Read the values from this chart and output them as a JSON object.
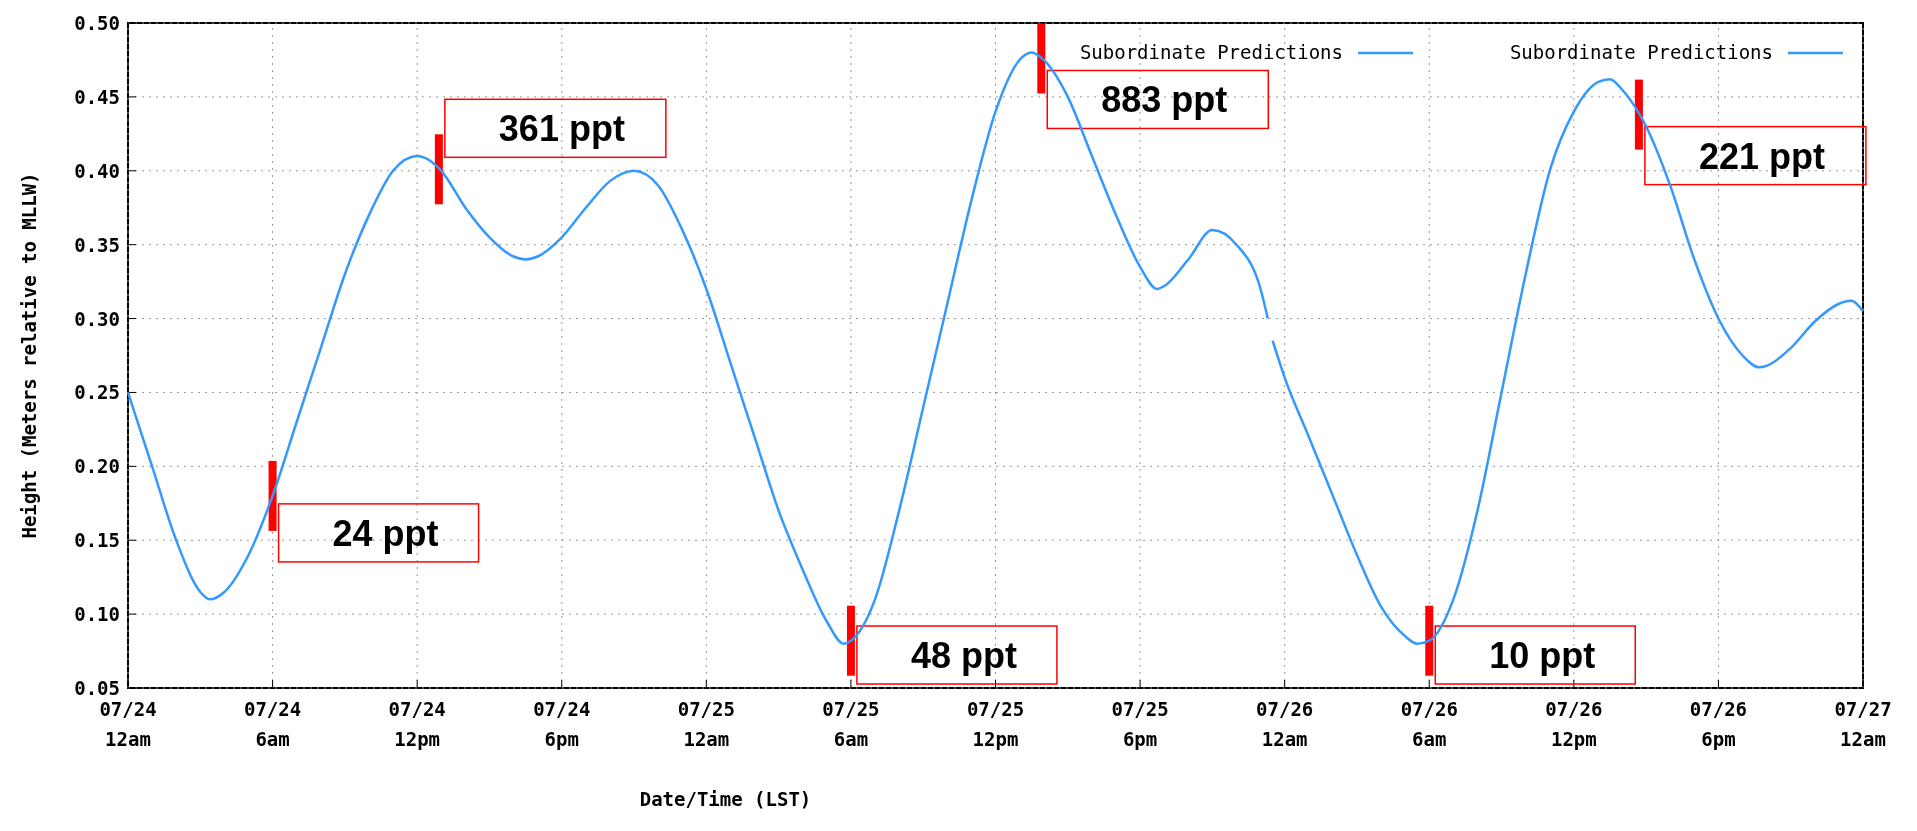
{
  "chart_data": {
    "type": "line",
    "xlabel": "Date/Time (LST)",
    "ylabel": "Height (Meters relative to MLLW)",
    "xlim": [
      "--07-24T00:00",
      "--07-27T00:00"
    ],
    "ylim": [
      0.05,
      0.5
    ],
    "yticks": [
      {
        "value": 0.05,
        "label": "0.05"
      },
      {
        "value": 0.1,
        "label": "0.10"
      },
      {
        "value": 0.15,
        "label": "0.15"
      },
      {
        "value": 0.2,
        "label": "0.20"
      },
      {
        "value": 0.25,
        "label": "0.25"
      },
      {
        "value": 0.3,
        "label": "0.30"
      },
      {
        "value": 0.35,
        "label": "0.35"
      },
      {
        "value": 0.4,
        "label": "0.40"
      },
      {
        "value": 0.45,
        "label": "0.45"
      },
      {
        "value": 0.5,
        "label": "0.50"
      }
    ],
    "xticks": [
      {
        "value": "--07-24T00:00",
        "label": "07/24\n12am"
      },
      {
        "value": "--07-24T06:00",
        "label": "07/24\n6am"
      },
      {
        "value": "--07-24T12:00",
        "label": "07/24\n12pm"
      },
      {
        "value": "--07-24T18:00",
        "label": "07/24\n6pm"
      },
      {
        "value": "--07-25T00:00",
        "label": "07/25\n12am"
      },
      {
        "value": "--07-25T06:00",
        "label": "07/25\n6am"
      },
      {
        "value": "--07-25T12:00",
        "label": "07/25\n12pm"
      },
      {
        "value": "--07-25T18:00",
        "label": "07/25\n6pm"
      },
      {
        "value": "--07-26T00:00",
        "label": "07/26\n12am"
      },
      {
        "value": "--07-26T06:00",
        "label": "07/26\n6am"
      },
      {
        "value": "--07-26T12:00",
        "label": "07/26\n12pm"
      },
      {
        "value": "--07-26T18:00",
        "label": "07/26\n6pm"
      },
      {
        "value": "--07-27T00:00",
        "label": "07/27\n12am"
      }
    ],
    "grid": true,
    "legend": "top right",
    "marker": "none",
    "line_style": "solid",
    "series": [
      {
        "name": "Subordinate Predictions",
        "color": "#3399ff",
        "x": [
          "--07-24T00:00",
          "--07-24T01:00",
          "--07-24T02:00",
          "--07-24T03:00",
          "--07-24T03:24",
          "--07-24T04:00",
          "--07-24T05:00",
          "--07-24T06:00",
          "--07-24T07:00",
          "--07-24T08:00",
          "--07-24T09:00",
          "--07-24T10:00",
          "--07-24T11:00",
          "--07-24T12:00",
          "--07-24T13:00",
          "--07-24T14:00",
          "--07-24T15:00",
          "--07-24T16:00",
          "--07-24T16:30",
          "--07-24T17:00",
          "--07-24T18:00",
          "--07-24T19:00",
          "--07-24T20:00",
          "--07-24T21:00",
          "--07-24T22:00",
          "--07-24T23:00",
          "--07-25T00:00",
          "--07-25T01:00",
          "--07-25T02:00",
          "--07-25T03:00",
          "--07-25T04:00",
          "--07-25T05:00",
          "--07-25T05:42",
          "--07-25T06:00",
          "--07-25T07:00",
          "--07-25T08:00",
          "--07-25T09:00",
          "--07-25T10:00",
          "--07-25T11:00",
          "--07-25T12:00",
          "--07-25T13:00",
          "--07-25T13:30",
          "--07-25T14:00",
          "--07-25T15:00",
          "--07-25T16:00",
          "--07-25T17:00",
          "--07-25T18:00",
          "--07-25T18:42",
          "--07-25T19:00",
          "--07-25T20:00",
          "--07-25T21:00",
          "--07-25T22:00",
          "--07-25T23:00",
          "--07-25T23:18"
        ],
        "values": [
          0.25,
          0.2,
          0.15,
          0.115,
          0.11,
          0.115,
          0.14,
          0.18,
          0.23,
          0.28,
          0.33,
          0.37,
          0.4,
          0.41,
          0.4,
          0.375,
          0.355,
          0.342,
          0.34,
          0.342,
          0.355,
          0.375,
          0.393,
          0.4,
          0.39,
          0.36,
          0.32,
          0.27,
          0.22,
          0.17,
          0.13,
          0.095,
          0.08,
          0.082,
          0.11,
          0.17,
          0.24,
          0.31,
          0.38,
          0.44,
          0.475,
          0.48,
          0.475,
          0.45,
          0.41,
          0.37,
          0.335,
          0.32,
          0.322,
          0.34,
          0.36,
          0.35,
          0.32,
          0.3
        ]
      },
      {
        "name": "Subordinate Predictions",
        "color": "#3399ff",
        "x": [
          "--07-25T23:30",
          "--07-26T00:00",
          "--07-26T01:00",
          "--07-26T02:00",
          "--07-26T03:00",
          "--07-26T04:00",
          "--07-26T05:00",
          "--07-26T05:30",
          "--07-26T06:00",
          "--07-26T07:00",
          "--07-26T08:00",
          "--07-26T09:00",
          "--07-26T10:00",
          "--07-26T11:00",
          "--07-26T12:00",
          "--07-26T13:00",
          "--07-26T13:30",
          "--07-26T14:00",
          "--07-26T15:00",
          "--07-26T16:00",
          "--07-26T17:00",
          "--07-26T18:00",
          "--07-26T19:00",
          "--07-26T19:42",
          "--07-26T20:00",
          "--07-26T21:00",
          "--07-26T22:00",
          "--07-26T23:00",
          "--07-26T23:30",
          "--07-27T00:00"
        ],
        "values": [
          0.285,
          0.26,
          0.22,
          0.18,
          0.14,
          0.105,
          0.085,
          0.08,
          0.082,
          0.11,
          0.17,
          0.25,
          0.33,
          0.4,
          0.44,
          0.46,
          0.462,
          0.455,
          0.43,
          0.39,
          0.34,
          0.3,
          0.275,
          0.267,
          0.268,
          0.28,
          0.298,
          0.31,
          0.312,
          0.305
        ]
      }
    ],
    "annotations": [
      {
        "text": "24 ppt",
        "x": "--07-24T06:00",
        "y": 0.18
      },
      {
        "text": "361 ppt",
        "x": "--07-24T12:54",
        "y": 0.401
      },
      {
        "text": "48 ppt",
        "x": "--07-25T06:00",
        "y": 0.082
      },
      {
        "text": "883 ppt",
        "x": "--07-25T13:54",
        "y": 0.476
      },
      {
        "text": "10 ppt",
        "x": "--07-26T06:00",
        "y": 0.082
      },
      {
        "text": "221 ppt",
        "x": "--07-26T14:42",
        "y": 0.438
      }
    ]
  }
}
